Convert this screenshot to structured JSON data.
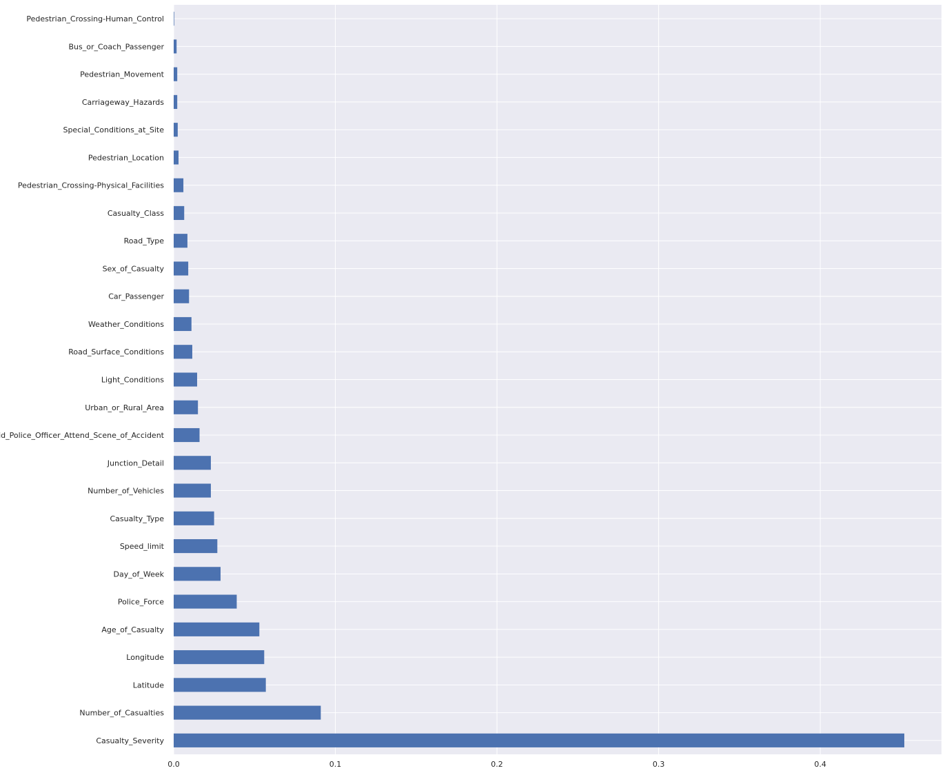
{
  "chart_data": {
    "type": "bar",
    "orientation": "horizontal",
    "title": "",
    "xlabel": "",
    "ylabel": "",
    "xlim": [
      0,
      0.475
    ],
    "xticks": [
      0.0,
      0.1,
      0.2,
      0.3,
      0.4
    ],
    "xtick_labels": [
      "0.0",
      "0.1",
      "0.2",
      "0.3",
      "0.4"
    ],
    "grid": true,
    "legend": "none",
    "colors": {
      "background": "#eaeaf2",
      "bar": "#4c72b0",
      "grid": "#ffffff",
      "text": "#262626"
    },
    "categories": [
      "Casualty_Severity",
      "Number_of_Casualties",
      "Latitude",
      "Longitude",
      "Age_of_Casualty",
      "Police_Force",
      "Day_of_Week",
      "Speed_limit",
      "Casualty_Type",
      "Number_of_Vehicles",
      "Junction_Detail",
      "Did_Police_Officer_Attend_Scene_of_Accident",
      "Urban_or_Rural_Area",
      "Light_Conditions",
      "Road_Surface_Conditions",
      "Weather_Conditions",
      "Car_Passenger",
      "Sex_of_Casualty",
      "Road_Type",
      "Casualty_Class",
      "Pedestrian_Crossing-Physical_Facilities",
      "Pedestrian_Location",
      "Special_Conditions_at_Site",
      "Carriageway_Hazards",
      "Pedestrian_Movement",
      "Bus_or_Coach_Passenger",
      "Pedestrian_Crossing-Human_Control"
    ],
    "values": [
      0.452,
      0.091,
      0.057,
      0.056,
      0.053,
      0.039,
      0.029,
      0.027,
      0.025,
      0.023,
      0.023,
      0.016,
      0.015,
      0.0145,
      0.0115,
      0.011,
      0.0095,
      0.009,
      0.0085,
      0.0065,
      0.006,
      0.003,
      0.0025,
      0.0022,
      0.0022,
      0.0018,
      0.0003
    ]
  }
}
